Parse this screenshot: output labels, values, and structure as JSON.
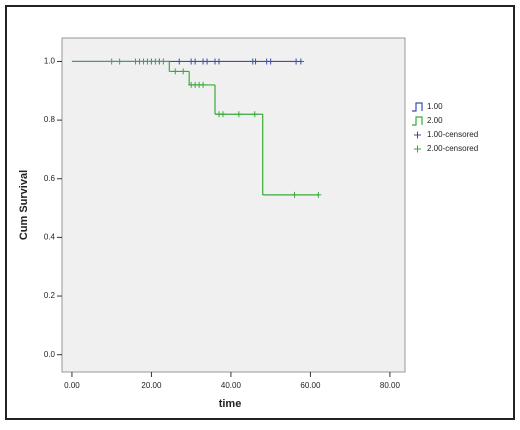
{
  "chart_data": {
    "type": "kaplan-meier",
    "x_label": "time",
    "y_label": "Cum Survival",
    "xlim": [
      -2.5,
      83.8
    ],
    "ylim": [
      -0.059,
      1.08
    ],
    "xticks": [
      {
        "value": 0,
        "label": "0.00"
      },
      {
        "value": 20,
        "label": "20.00"
      },
      {
        "value": 40,
        "label": "40.00"
      },
      {
        "value": 60,
        "label": "60.00"
      },
      {
        "value": 80,
        "label": "80.00"
      }
    ],
    "yticks": [
      {
        "value": 0,
        "label": "0.0"
      },
      {
        "value": 0.2,
        "label": "0.2"
      },
      {
        "value": 0.4,
        "label": "0.4"
      },
      {
        "value": 0.6,
        "label": "0.6"
      },
      {
        "value": 0.8,
        "label": "0.8"
      },
      {
        "value": 1.0,
        "label": "1.0"
      }
    ],
    "series": [
      {
        "name": "1.00",
        "style": "step",
        "color": "#3a4fa8",
        "x": [
          0,
          57.6
        ],
        "values": [
          1.0,
          1.0
        ]
      },
      {
        "name": "2.00",
        "style": "step",
        "color": "#3aaa3a",
        "x": [
          0,
          24.5,
          29.5,
          36,
          48,
          62
        ],
        "values": [
          1.0,
          0.966,
          0.92,
          0.82,
          0.545,
          0.545
        ]
      },
      {
        "name": "1.00-censored",
        "style": "plus",
        "color": "#3a4fa8",
        "x": [
          20,
          22,
          27,
          30,
          31,
          33,
          34,
          36,
          37,
          45.5,
          46.2,
          49,
          50,
          56.4,
          57.6
        ],
        "values": [
          1,
          1,
          1,
          1,
          1,
          1,
          1,
          1,
          1,
          1,
          1,
          1,
          1,
          1,
          1
        ]
      },
      {
        "name": "2.00-censored",
        "style": "plus",
        "color": "#3aaa3a",
        "x": [
          10,
          12,
          16,
          17,
          18,
          19,
          20,
          21,
          22,
          23,
          26,
          28,
          30,
          31,
          32,
          33,
          37,
          38,
          42,
          46,
          56,
          62
        ],
        "values": [
          1,
          1,
          1,
          1,
          1,
          1,
          1,
          1,
          1,
          1,
          0.966,
          0.966,
          0.92,
          0.92,
          0.92,
          0.92,
          0.82,
          0.82,
          0.82,
          0.82,
          0.545,
          0.545
        ]
      }
    ]
  }
}
